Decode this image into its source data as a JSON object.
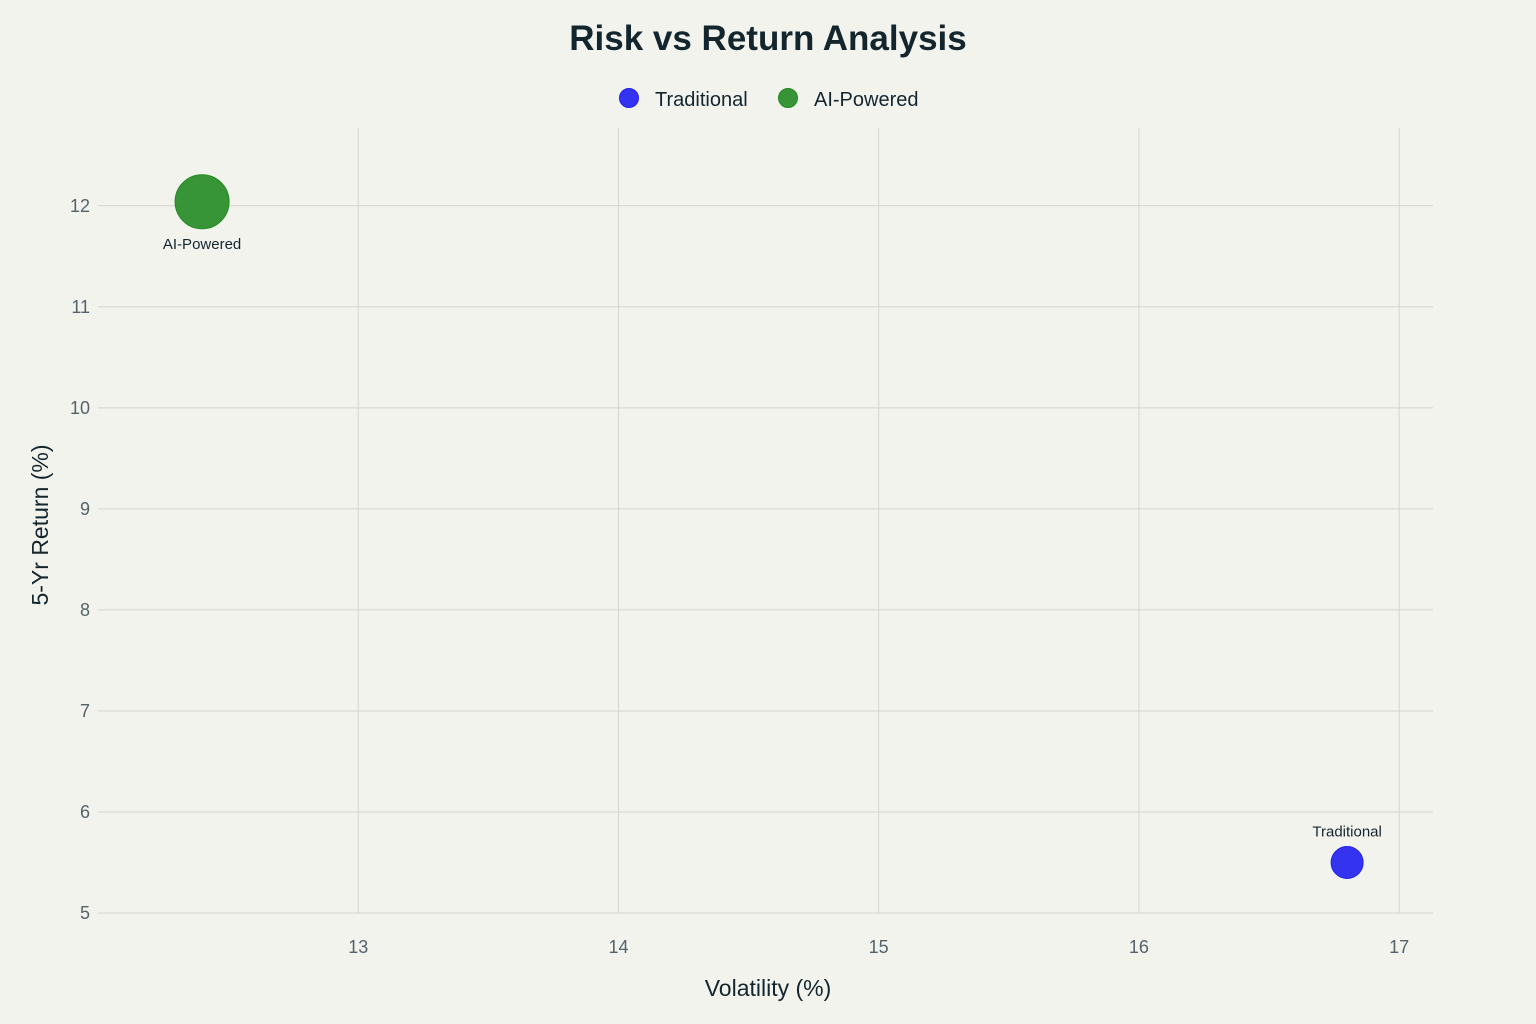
{
  "chart_data": {
    "type": "scatter",
    "title": "Risk vs Return Analysis",
    "xlabel": "Volatility (%)",
    "ylabel": "5-Yr Return (%)",
    "xlim": [
      12.0,
      17.13
    ],
    "ylim": [
      5.0,
      12.77
    ],
    "xticks": [
      13,
      14,
      15,
      16,
      17
    ],
    "yticks": [
      5,
      6,
      7,
      8,
      9,
      10,
      11,
      12
    ],
    "grid": true,
    "legend": "top-center",
    "series": [
      {
        "name": "Traditional",
        "color": "#1f1ff0",
        "points": [
          {
            "x": 16.8,
            "y": 5.5,
            "label": "Traditional",
            "label_position": "top"
          }
        ]
      },
      {
        "name": "AI-Powered",
        "color": "#228b22",
        "points": [
          {
            "x": 12.4,
            "y": 12.04,
            "label": "AI-Powered",
            "label_position": "bottom"
          }
        ]
      }
    ]
  }
}
